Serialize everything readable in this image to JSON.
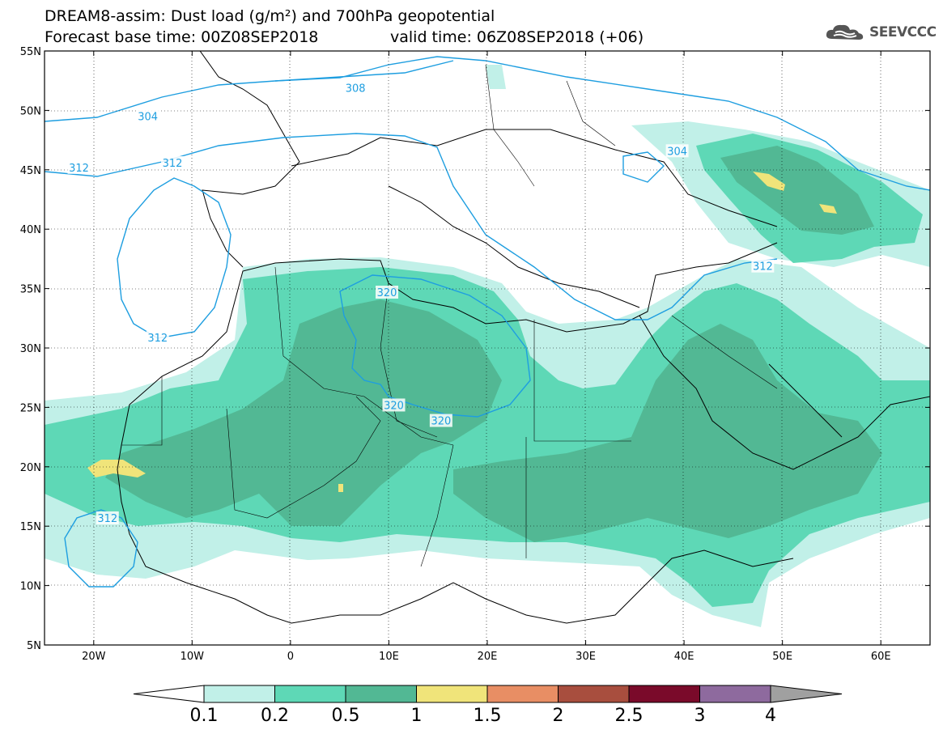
{
  "title": {
    "line1": "DREAM8-assim: Dust load (g/m²) and 700hPa geopotential",
    "line2": "Forecast base time: 00Z08SEP2018",
    "valid": "valid time: 06Z08SEP2018 (+06)"
  },
  "logo": {
    "text": "SEEVCCC",
    "icon": "cloud-icon"
  },
  "axes": {
    "lon_min": -25,
    "lon_max": 65,
    "lat_min": 5,
    "lat_max": 55,
    "x_ticks": [
      {
        "value": -20,
        "label": "20W"
      },
      {
        "value": -10,
        "label": "10W"
      },
      {
        "value": 0,
        "label": "0"
      },
      {
        "value": 10,
        "label": "10E"
      },
      {
        "value": 20,
        "label": "20E"
      },
      {
        "value": 30,
        "label": "30E"
      },
      {
        "value": 40,
        "label": "40E"
      },
      {
        "value": 50,
        "label": "50E"
      },
      {
        "value": 60,
        "label": "60E"
      }
    ],
    "y_ticks": [
      {
        "value": 55,
        "label": "55N"
      },
      {
        "value": 50,
        "label": "50N"
      },
      {
        "value": 45,
        "label": "45N"
      },
      {
        "value": 40,
        "label": "40N"
      },
      {
        "value": 35,
        "label": "35N"
      },
      {
        "value": 30,
        "label": "30N"
      },
      {
        "value": 25,
        "label": "25N"
      },
      {
        "value": 20,
        "label": "20N"
      },
      {
        "value": 15,
        "label": "15N"
      },
      {
        "value": 10,
        "label": "10N"
      },
      {
        "value": 5,
        "label": "5N"
      }
    ],
    "grid": "dotted"
  },
  "contours": [
    {
      "value": "304",
      "label_positions": [
        [
          -14.5,
          49.5
        ],
        [
          39.3,
          46.6
        ]
      ]
    },
    {
      "value": "308",
      "label_positions": [
        [
          6.6,
          51.9
        ]
      ]
    },
    {
      "value": "312",
      "label_positions": [
        [
          -21.5,
          45.2
        ],
        [
          -12.0,
          45.6
        ],
        [
          -13.5,
          30.9
        ],
        [
          -18.6,
          15.7
        ],
        [
          48.0,
          36.9
        ]
      ]
    },
    {
      "value": "320",
      "label_positions": [
        [
          9.8,
          34.7
        ],
        [
          10.5,
          25.2
        ],
        [
          15.3,
          23.9
        ]
      ]
    }
  ],
  "colorbar": {
    "colors": [
      "#c1f0e8",
      "#5ed8b6",
      "#52b894",
      "#f0e47a",
      "#e88e64",
      "#a84e3e",
      "#7a0a2a",
      "#8e6a9e"
    ],
    "labels": [
      "0.1",
      "0.2",
      "0.5",
      "1",
      "1.5",
      "2",
      "2.5",
      "3",
      "4"
    ],
    "under_color": "#ffffff",
    "over_color": "#a0a0a0"
  },
  "colors": {
    "contour": "#1e9ee0",
    "dust_light": "#c1f0e8",
    "dust_mid": "#5ed8b6",
    "dust_dark": "#52b894",
    "dust_high": "#f0e47a"
  }
}
